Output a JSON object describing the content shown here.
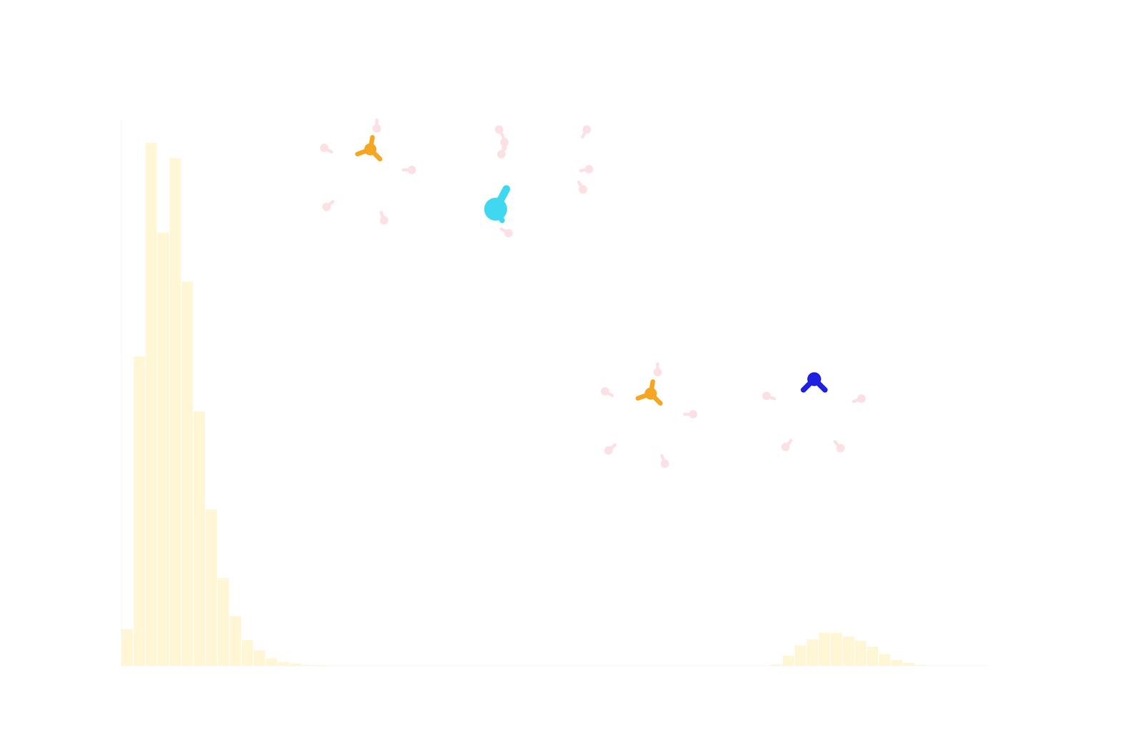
{
  "chart_data": {
    "type": "histogram",
    "xlim": [
      0,
      72
    ],
    "ylim": [
      0,
      750
    ],
    "grid": false,
    "tick_labels": false,
    "series": [
      {
        "color": "#fff6d5",
        "bins": [
          0,
          1,
          2,
          3,
          4,
          5,
          6,
          7,
          8,
          9,
          10,
          11,
          12,
          13,
          14,
          15,
          16,
          17,
          18
        ],
        "counts": [
          50,
          424,
          717,
          594,
          696,
          527,
          349,
          214,
          120,
          68,
          35,
          21,
          10,
          5,
          3,
          1,
          0.5,
          0.3
        ]
      },
      {
        "color": "#fff6d5",
        "bins": [
          54,
          55,
          56,
          57,
          58,
          59,
          60,
          61,
          62,
          63,
          64,
          65,
          66,
          67
        ],
        "counts": [
          2,
          14,
          28,
          36,
          45,
          45,
          40,
          34,
          26,
          16,
          8,
          4,
          1
        ]
      }
    ]
  }
}
